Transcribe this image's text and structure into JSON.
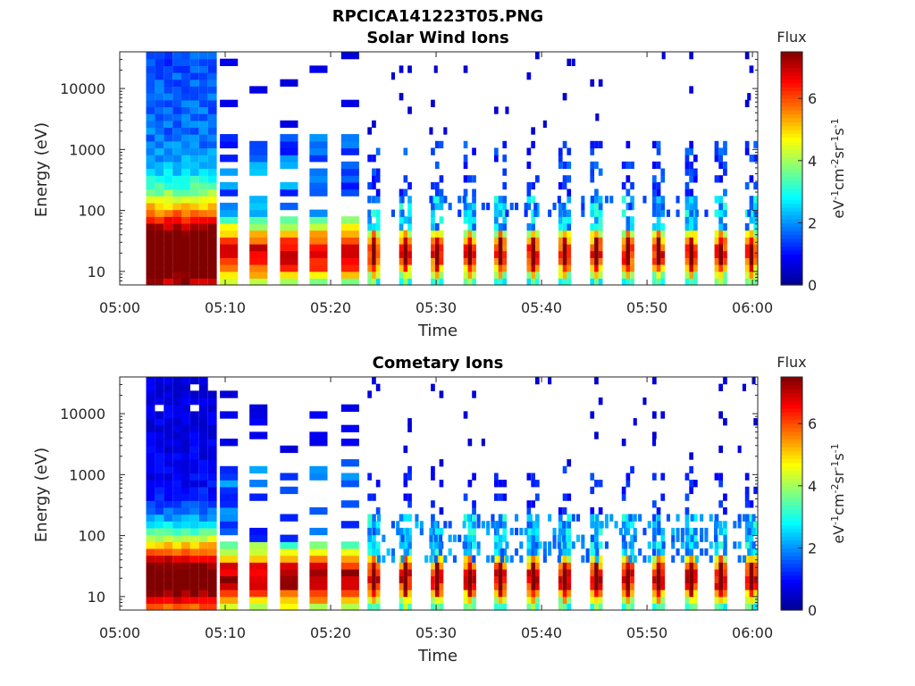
{
  "figure": {
    "suptitle": "RPCICA141223T05.PNG"
  },
  "colors": {
    "colormap": [
      "#00008f",
      "#0000ff",
      "#0080ff",
      "#00ffff",
      "#80ff80",
      "#ffff00",
      "#ff8000",
      "#ff0000",
      "#800000"
    ],
    "axis": "#262626",
    "background": "#ffffff"
  },
  "chart_data": [
    {
      "type": "heatmap",
      "title": "Solar Wind Ions",
      "xlabel": "Time",
      "ylabel": "Energy (eV)",
      "y_scale": "log",
      "x_ticks": [
        "05:00",
        "05:10",
        "05:20",
        "05:30",
        "05:40",
        "05:50",
        "06:00"
      ],
      "x_range_minutes": [
        0,
        60.5
      ],
      "y_ticks": [
        "10",
        "100",
        "1000",
        "10000"
      ],
      "y_range": [
        6,
        40000
      ],
      "colorbar": {
        "label": "Flux",
        "units": "eV-1cm-2sr-1s-1",
        "ticks": [
          "0",
          "2",
          "4",
          "6"
        ],
        "range": [
          0,
          7.5
        ]
      },
      "burst_times_minutes": [
        24.1,
        27.1,
        30.1,
        33.2,
        36.1,
        39.2,
        42.2,
        45.2,
        48.2,
        51.1,
        54.2,
        57.0,
        59.9
      ],
      "features": {
        "continuous_block_minutes": [
          2.5,
          9.2
        ],
        "peak_energy_eV": 20,
        "peak_flux": 6.5
      }
    },
    {
      "type": "heatmap",
      "title": "Cometary Ions",
      "xlabel": "Time",
      "ylabel": "Energy (eV)",
      "y_scale": "log",
      "x_ticks": [
        "05:00",
        "05:10",
        "05:20",
        "05:30",
        "05:40",
        "05:50",
        "06:00"
      ],
      "x_range_minutes": [
        0,
        60.5
      ],
      "y_ticks": [
        "10",
        "100",
        "1000",
        "10000"
      ],
      "y_range": [
        6,
        40000
      ],
      "colorbar": {
        "label": "Flux",
        "units": "eV-1cm-2sr-1s-1",
        "ticks": [
          "0",
          "2",
          "4",
          "6"
        ],
        "range": [
          0,
          7.5
        ]
      },
      "burst_times_minutes": [
        24.1,
        27.1,
        30.1,
        33.2,
        36.1,
        39.2,
        42.2,
        45.2,
        48.2,
        51.1,
        54.2,
        57.0,
        59.9
      ],
      "features": {
        "continuous_block_minutes": [
          2.5,
          9.2
        ],
        "peak_energy_eV": 20,
        "peak_flux": 7.0
      }
    }
  ]
}
